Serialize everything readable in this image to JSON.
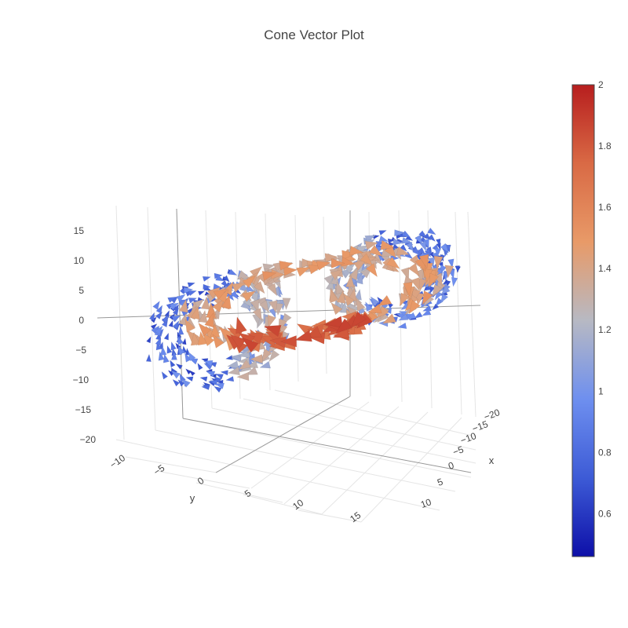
{
  "chart_data": {
    "type": "cone",
    "title": "Cone Vector Plot",
    "axes": {
      "x": {
        "title": "x",
        "ticks": [
          "−20",
          "−15",
          "−10",
          "−5",
          "0",
          "5",
          "10"
        ],
        "range": [
          -20,
          10
        ]
      },
      "y": {
        "title": "y",
        "ticks": [
          "−10",
          "−5",
          "0",
          "5",
          "10",
          "15"
        ],
        "range": [
          -12,
          17
        ]
      },
      "z": {
        "title": "",
        "ticks": [
          "15",
          "10",
          "5",
          "0",
          "−5",
          "−10",
          "−15",
          "−20"
        ],
        "range": [
          -22,
          18
        ]
      }
    },
    "colorbar": {
      "ticks": [
        "2",
        "1.8",
        "1.6",
        "1.4",
        "1.2",
        "1",
        "0.8",
        "0.6"
      ],
      "range": [
        0.46,
        2.0
      ],
      "colorscale": [
        "#0d0fa8",
        "#3d5bd6",
        "#6e8fef",
        "#b7b9c3",
        "#e89a68",
        "#d96a45",
        "#b71e1e"
      ]
    },
    "field_description": "Lorenz-type attractor ring: two lobes of cones, low magnitude (blue) on the outer left and right lobes, high magnitude (red) along the inner lower arc",
    "grid": true,
    "legend": "none"
  }
}
